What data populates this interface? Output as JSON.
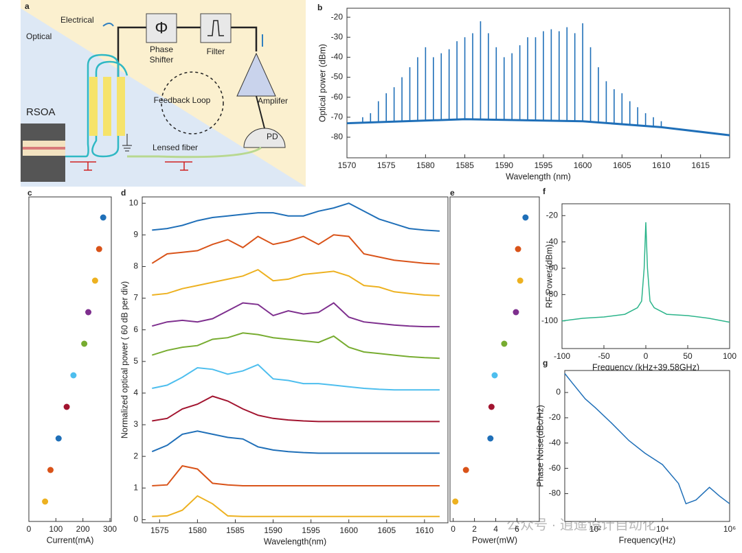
{
  "diagram": {
    "panel": "a",
    "electrical": "Electrical",
    "optical": "Optical",
    "phase_symbol": "Φ",
    "phase_shifter": "Phase Shifter",
    "filter": "Filter",
    "feedback_loop": "Feedback Loop",
    "amplifier": "Amplifer",
    "pd": "PD",
    "rsoa": "RSOA",
    "lensed_fiber": "Lensed fiber"
  },
  "watermark": "公众号 · 逍遥设计自动化",
  "chart_data": [
    {
      "type": "comb",
      "panel": "b",
      "xlabel": "Wavelength (nm)",
      "ylabel": "Optical power (dBm)",
      "xlim": [
        1570,
        1618.7
      ],
      "xticks": [
        1570,
        1575,
        1580,
        1585,
        1590,
        1595,
        1600,
        1605,
        1610,
        1615
      ],
      "ylim": [
        -90.3,
        -15.5
      ],
      "yticks": [
        -80,
        -70,
        -60,
        -50,
        -40,
        -30,
        -20
      ],
      "series": [
        {
          "color": "#1f6fb8",
          "x": [
            1572,
            1573,
            1574,
            1575,
            1576,
            1577,
            1578,
            1579,
            1580,
            1581,
            1582,
            1583,
            1584,
            1585,
            1586,
            1587,
            1588,
            1589,
            1590,
            1591,
            1592,
            1593,
            1594,
            1595,
            1596,
            1597,
            1598,
            1599,
            1600,
            1601,
            1602,
            1603,
            1604,
            1605,
            1606,
            1607,
            1608,
            1609,
            1610
          ],
          "values": [
            -70,
            -68,
            -62,
            -58,
            -55,
            -50,
            -45,
            -40,
            -35,
            -40,
            -38,
            -36,
            -32,
            -30,
            -28,
            -22,
            -28,
            -35,
            -40,
            -38,
            -34,
            -30,
            -30,
            -27,
            -26,
            -27,
            -25,
            -28,
            -23,
            -35,
            -45,
            -52,
            -56,
            -58,
            -62,
            -65,
            -68,
            -70,
            -72
          ]
        },
        {
          "color": "#1f6fb8",
          "x": [
            1570,
            1585,
            1600,
            1610,
            1618.7
          ],
          "values": [
            -73,
            -71,
            -72,
            -75,
            -79
          ]
        }
      ]
    },
    {
      "type": "dots",
      "panel": "c",
      "xlabel": "Current(mA)",
      "xlim": [
        0,
        305
      ],
      "xticks": [
        0,
        100,
        200,
        300
      ],
      "values": [
        275,
        260,
        245,
        220,
        205,
        165,
        140,
        110,
        80,
        60
      ],
      "colors": [
        "#1f6fb8",
        "#d95319",
        "#edb120",
        "#7e2f8e",
        "#77ac30",
        "#4dbeee",
        "#a2142f",
        "#1f6fb8",
        "#d95319",
        "#edb120"
      ]
    },
    {
      "type": "envelope",
      "panel": "d",
      "xlabel": "Wavelength(nm)",
      "ylabel": "Normalized optical power ( 60 dB per div)",
      "xlim": [
        1572.7,
        1613.1
      ],
      "xticks": [
        1575,
        1580,
        1585,
        1590,
        1595,
        1600,
        1605,
        1610
      ],
      "ylim": [
        -0.1,
        10.2
      ],
      "yticks": [
        0,
        1,
        2,
        3,
        4,
        5,
        6,
        7,
        8,
        9,
        10
      ],
      "x": [
        1574,
        1576,
        1578,
        1580,
        1582,
        1584,
        1586,
        1588,
        1590,
        1592,
        1594,
        1596,
        1598,
        1600,
        1602,
        1604,
        1606,
        1608,
        1610,
        1612
      ],
      "series": [
        {
          "color": "#1f6fb8",
          "values": [
            9.15,
            9.2,
            9.3,
            9.45,
            9.55,
            9.6,
            9.65,
            9.7,
            9.7,
            9.6,
            9.6,
            9.75,
            9.85,
            10.0,
            9.75,
            9.5,
            9.35,
            9.2,
            9.15,
            9.12
          ]
        },
        {
          "color": "#d95319",
          "values": [
            8.1,
            8.4,
            8.45,
            8.5,
            8.7,
            8.85,
            8.6,
            8.95,
            8.7,
            8.8,
            8.95,
            8.7,
            9.0,
            8.95,
            8.4,
            8.3,
            8.2,
            8.15,
            8.1,
            8.08
          ]
        },
        {
          "color": "#edb120",
          "values": [
            7.1,
            7.15,
            7.3,
            7.4,
            7.5,
            7.6,
            7.7,
            7.9,
            7.55,
            7.6,
            7.75,
            7.8,
            7.85,
            7.7,
            7.4,
            7.35,
            7.2,
            7.15,
            7.1,
            7.08
          ]
        },
        {
          "color": "#7e2f8e",
          "values": [
            6.12,
            6.25,
            6.3,
            6.25,
            6.35,
            6.6,
            6.85,
            6.8,
            6.45,
            6.6,
            6.5,
            6.55,
            6.85,
            6.4,
            6.25,
            6.2,
            6.15,
            6.12,
            6.1,
            6.1
          ]
        },
        {
          "color": "#77ac30",
          "values": [
            5.2,
            5.35,
            5.45,
            5.5,
            5.7,
            5.75,
            5.9,
            5.85,
            5.75,
            5.7,
            5.65,
            5.6,
            5.8,
            5.45,
            5.3,
            5.25,
            5.2,
            5.15,
            5.12,
            5.1
          ]
        },
        {
          "color": "#4dbeee",
          "values": [
            4.15,
            4.25,
            4.5,
            4.8,
            4.75,
            4.6,
            4.7,
            4.9,
            4.45,
            4.4,
            4.3,
            4.3,
            4.25,
            4.2,
            4.15,
            4.12,
            4.1,
            4.1,
            4.1,
            4.1
          ]
        },
        {
          "color": "#a2142f",
          "values": [
            3.12,
            3.2,
            3.5,
            3.65,
            3.9,
            3.75,
            3.5,
            3.3,
            3.2,
            3.15,
            3.12,
            3.1,
            3.1,
            3.1,
            3.1,
            3.1,
            3.1,
            3.1,
            3.1,
            3.1
          ]
        },
        {
          "color": "#1f6fb8",
          "values": [
            2.15,
            2.35,
            2.7,
            2.8,
            2.7,
            2.6,
            2.55,
            2.3,
            2.2,
            2.15,
            2.12,
            2.1,
            2.1,
            2.1,
            2.1,
            2.1,
            2.1,
            2.1,
            2.1,
            2.1
          ]
        },
        {
          "color": "#d95319",
          "values": [
            1.07,
            1.1,
            1.7,
            1.6,
            1.15,
            1.1,
            1.07,
            1.07,
            1.07,
            1.07,
            1.07,
            1.07,
            1.07,
            1.07,
            1.07,
            1.07,
            1.07,
            1.07,
            1.07,
            1.07
          ]
        },
        {
          "color": "#edb120",
          "values": [
            0.1,
            0.12,
            0.3,
            0.75,
            0.5,
            0.12,
            0.1,
            0.1,
            0.1,
            0.1,
            0.1,
            0.1,
            0.1,
            0.1,
            0.1,
            0.1,
            0.1,
            0.1,
            0.1,
            0.1
          ]
        }
      ]
    },
    {
      "type": "dots",
      "panel": "e",
      "xlabel": "Power(mW)",
      "xlim": [
        -0.3,
        8.1
      ],
      "xticks": [
        0,
        2,
        4,
        6
      ],
      "values": [
        6.8,
        6.1,
        6.3,
        5.9,
        4.8,
        3.9,
        3.6,
        3.5,
        1.2,
        0.2
      ],
      "colors": [
        "#1f6fb8",
        "#d95319",
        "#edb120",
        "#7e2f8e",
        "#77ac30",
        "#4dbeee",
        "#a2142f",
        "#1f6fb8",
        "#d95319",
        "#edb120"
      ]
    },
    {
      "type": "line",
      "panel": "f",
      "xlabel": "Frequency (kHz+39.58GHz)",
      "ylabel": "RF Power (dBm)",
      "xlim": [
        -100,
        100
      ],
      "xticks": [
        -100,
        -50,
        0,
        50,
        100
      ],
      "ylim": [
        -121,
        -11
      ],
      "yticks": [
        -100,
        -80,
        -60,
        -40,
        -20
      ],
      "color": "#2bb48a",
      "x": [
        -100,
        -75,
        -50,
        -25,
        -10,
        -5,
        -2,
        0,
        2,
        5,
        10,
        25,
        50,
        75,
        100
      ],
      "values": [
        -100,
        -98,
        -97,
        -95,
        -90,
        -85,
        -60,
        -25,
        -60,
        -85,
        -90,
        -95,
        -96,
        -98,
        -101
      ]
    },
    {
      "type": "line",
      "panel": "g",
      "xlabel": "Frequency(Hz)",
      "ylabel": "Phase Noise(dBc/Hz)",
      "xscale": "log",
      "xlim": [
        12.3,
        1000000
      ],
      "xticks": [
        {
          "value": 100,
          "label": "10²"
        },
        {
          "value": 10000,
          "label": "10⁴"
        },
        {
          "value": 1000000,
          "label": "10⁶"
        }
      ],
      "ylim": [
        -102,
        17.4
      ],
      "yticks": [
        -80,
        -60,
        -40,
        -20,
        0
      ],
      "color": "#1f6fb8",
      "x": [
        12.3,
        20,
        50,
        100,
        300,
        1000,
        3000,
        10000,
        30000,
        50000,
        100000,
        250000,
        500000,
        1000000
      ],
      "values": [
        15,
        8,
        -5,
        -12,
        -24,
        -38,
        -48,
        -57,
        -72,
        -88,
        -85,
        -75,
        -82,
        -88
      ]
    }
  ]
}
